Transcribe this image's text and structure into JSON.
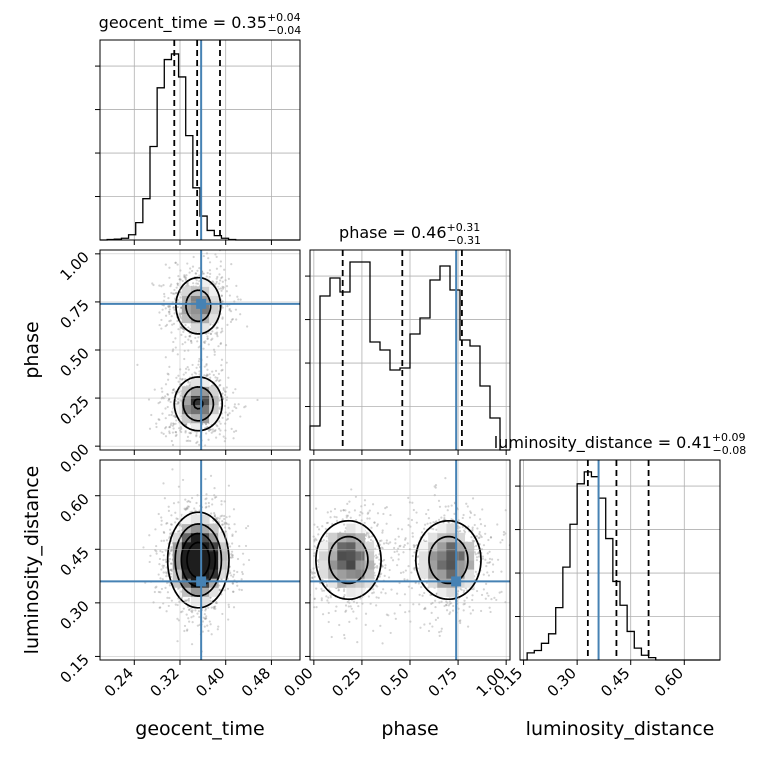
{
  "chart_data": {
    "type": "corner",
    "parameters": [
      {
        "name": "geocent_time",
        "axis_label": "geocent_time",
        "range": [
          0.18,
          0.53
        ],
        "ticks": [
          "0.24",
          "0.32",
          "0.40",
          "0.48"
        ],
        "tick_values": [
          0.24,
          0.32,
          0.4,
          0.48
        ],
        "title": {
          "prefix": "geocent_time = ",
          "median": "0.35",
          "plus": "+0.04",
          "minus": "−0.04"
        },
        "quantiles": [
          0.31,
          0.35,
          0.39
        ],
        "truth": 0.357,
        "hist_edges_start": 0.18,
        "hist_bin_width": 0.0125,
        "hist_counts": [
          0,
          1,
          2,
          4,
          12,
          40,
          95,
          215,
          350,
          415,
          428,
          375,
          240,
          120,
          55,
          22,
          10,
          4,
          1,
          0,
          0,
          0,
          0,
          0,
          0,
          0,
          0,
          0
        ]
      },
      {
        "name": "phase",
        "axis_label": "phase",
        "range": [
          -0.02,
          1.02
        ],
        "ticks": [
          "0.00",
          "0.25",
          "0.50",
          "0.75",
          "1.00"
        ],
        "tick_values": [
          0,
          0.25,
          0.5,
          0.75,
          1.0
        ],
        "title": {
          "prefix": "phase = ",
          "median": "0.46",
          "plus": "+0.31",
          "minus": "−0.31"
        },
        "quantiles": [
          0.15,
          0.46,
          0.77
        ],
        "truth": 0.74,
        "hist_edges_start": -0.02,
        "hist_bin_width": 0.052,
        "hist_counts": [
          60,
          385,
          430,
          395,
          470,
          470,
          270,
          250,
          200,
          205,
          290,
          330,
          425,
          460,
          400,
          275,
          260,
          160,
          80,
          0
        ]
      },
      {
        "name": "luminosity_distance",
        "axis_label": "luminosity_distance",
        "range": [
          0.14,
          0.7
        ],
        "ticks": [
          "0.15",
          "0.30",
          "0.45",
          "0.60"
        ],
        "tick_values": [
          0.15,
          0.3,
          0.45,
          0.6
        ],
        "title": {
          "prefix": "luminosity_distance = ",
          "median": "0.41",
          "plus": "+0.09",
          "minus": "−0.08"
        },
        "quantiles": [
          0.33,
          0.41,
          0.5
        ],
        "truth": 0.36,
        "hist_edges_start": 0.14,
        "hist_bin_width": 0.02,
        "hist_counts": [
          0,
          15,
          20,
          35,
          55,
          110,
          195,
          285,
          370,
          395,
          385,
          340,
          255,
          165,
          115,
          60,
          25,
          10,
          5,
          0,
          0,
          0,
          0,
          0,
          0,
          0,
          0,
          0
        ]
      }
    ],
    "hist_ymax": [
      460,
      500,
      420
    ],
    "truth_color": "#4682b4",
    "contour_color": "#000000",
    "scatter_color": "#808080",
    "grid": true,
    "density_components": {
      "phase_vs_geocent_time": [
        {
          "x": 0.352,
          "y": 0.22,
          "sx": 0.024,
          "sy": 0.08,
          "w": 0.55
        },
        {
          "x": 0.352,
          "y": 0.73,
          "sx": 0.024,
          "sy": 0.09,
          "w": 0.45
        }
      ],
      "luminosity_distance_vs_geocent_time": [
        {
          "x": 0.352,
          "y": 0.42,
          "sx": 0.026,
          "sy": 0.065,
          "w": 1.0
        }
      ],
      "luminosity_distance_vs_phase": [
        {
          "x": 0.18,
          "y": 0.42,
          "sx": 0.1,
          "sy": 0.065,
          "w": 0.5
        },
        {
          "x": 0.7,
          "y": 0.42,
          "sx": 0.1,
          "sy": 0.065,
          "w": 0.5
        }
      ]
    }
  }
}
